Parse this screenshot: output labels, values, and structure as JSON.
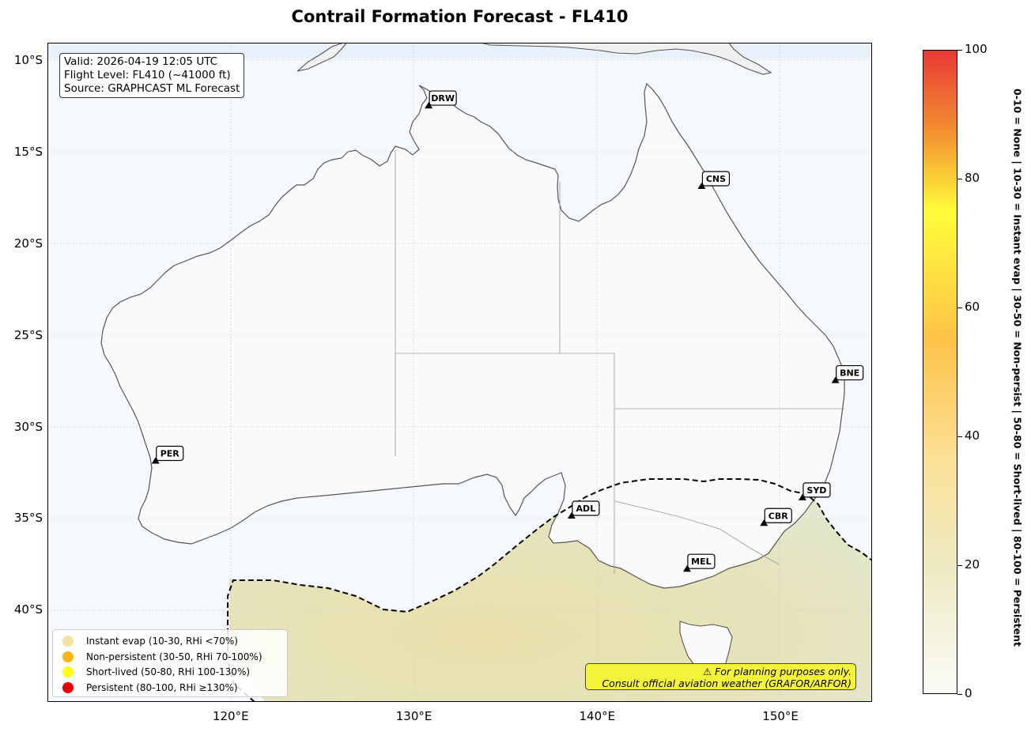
{
  "title": "Contrail Formation Forecast - FL410",
  "info": {
    "valid": "Valid: 2026-04-19 12:05 UTC",
    "flight_level": "Flight Level: FL410 (~41000 ft)",
    "source": "Source: GRAPHCAST ML Forecast"
  },
  "axes": {
    "lat_ticks": [
      {
        "value": -10,
        "label": "10°S"
      },
      {
        "value": -15,
        "label": "15°S"
      },
      {
        "value": -20,
        "label": "20°S"
      },
      {
        "value": -25,
        "label": "25°S"
      },
      {
        "value": -30,
        "label": "30°S"
      },
      {
        "value": -35,
        "label": "35°S"
      },
      {
        "value": -40,
        "label": "40°S"
      }
    ],
    "lon_ticks": [
      {
        "value": 120,
        "label": "120°E"
      },
      {
        "value": 130,
        "label": "130°E"
      },
      {
        "value": 140,
        "label": "140°E"
      },
      {
        "value": 150,
        "label": "150°E"
      }
    ],
    "lon_range": [
      110,
      155
    ],
    "lat_range": [
      -45,
      -9
    ]
  },
  "stations": [
    {
      "code": "DRW",
      "lon": 130.8,
      "lat": -12.5
    },
    {
      "code": "CNS",
      "lon": 145.7,
      "lat": -16.9
    },
    {
      "code": "BNE",
      "lon": 153.0,
      "lat": -27.5
    },
    {
      "code": "PER",
      "lon": 115.9,
      "lat": -31.9
    },
    {
      "code": "SYD",
      "lon": 151.2,
      "lat": -33.9
    },
    {
      "code": "ADL",
      "lon": 138.6,
      "lat": -34.9
    },
    {
      "code": "CBR",
      "lon": 149.1,
      "lat": -35.3
    },
    {
      "code": "MEL",
      "lon": 144.9,
      "lat": -37.8
    }
  ],
  "legend": [
    {
      "label": "Instant evap (10-30, RHi <70%)",
      "color": "#f0e2a0"
    },
    {
      "label": "Non-persistent (30-50, RHi 70-100%)",
      "color": "#ffb416"
    },
    {
      "label": "Short-lived (50-80, RHi 100-130%)",
      "color": "#ffff10"
    },
    {
      "label": "Persistent (80-100, RHi ≥130%)",
      "color": "#e60000"
    }
  ],
  "disclaimer": {
    "line1": "⚠ For planning purposes only.",
    "line2": "Consult official aviation weather (GRAFOR/ARFOR)"
  },
  "colorbar": {
    "min": 0,
    "max": 100,
    "ticks": [
      {
        "value": 0,
        "label": "0"
      },
      {
        "value": 20,
        "label": "20"
      },
      {
        "value": 40,
        "label": "40"
      },
      {
        "value": 60,
        "label": "60"
      },
      {
        "value": 80,
        "label": "80"
      },
      {
        "value": 100,
        "label": "100"
      }
    ],
    "note": "0-10 = None  |  10-30 = Instant evap  |  30-50 = Non-persist  |  50-80 = Short-lived  |  80-100 = Persistent",
    "stops": [
      {
        "value": 0,
        "color": "#fcfcf8"
      },
      {
        "value": 20,
        "color": "#ece9c0"
      },
      {
        "value": 35,
        "color": "#fbe29c"
      },
      {
        "value": 55,
        "color": "#fdc348"
      },
      {
        "value": 75,
        "color": "#fffc3a"
      },
      {
        "value": 88,
        "color": "#f28a30"
      },
      {
        "value": 100,
        "color": "#e83a36"
      }
    ]
  },
  "map_colors": {
    "ocean": "#f5f9fe",
    "land": "#fafafa",
    "coast": "#555555",
    "contrail_fill": "#e6e2ba"
  }
}
